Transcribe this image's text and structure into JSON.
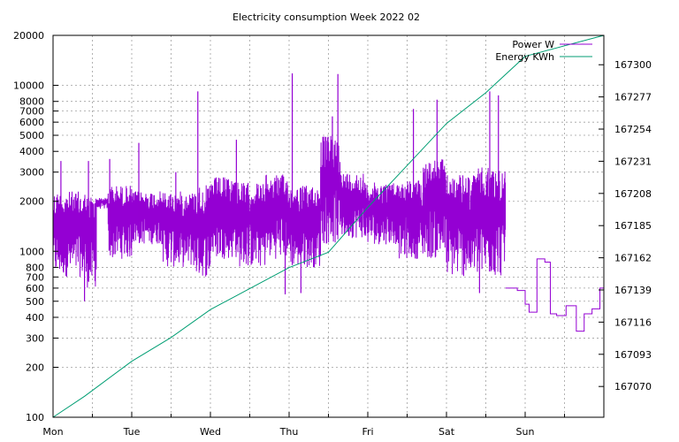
{
  "chart_data": {
    "type": "line",
    "title": "Electricity consumption Week 2022 02",
    "x_categories": [
      "Mon",
      "Tue",
      "Wed",
      "Thu",
      "Fri",
      "Sat",
      "Sun"
    ],
    "x_range_days": [
      0,
      7
    ],
    "y_left_scale": "log",
    "y_left_range": [
      100,
      20000
    ],
    "y_left_ticks": [
      100,
      200,
      300,
      400,
      500,
      600,
      700,
      800,
      1000,
      2000,
      3000,
      4000,
      5000,
      6000,
      7000,
      8000,
      10000,
      20000
    ],
    "y_right_range": [
      167048,
      167321
    ],
    "y_right_ticks": [
      167070,
      167093,
      167116,
      167139,
      167162,
      167185,
      167208,
      167231,
      167254,
      167277,
      167300
    ],
    "grid": true,
    "legend_position": "top-right",
    "series": [
      {
        "name": "Power W",
        "axis": "left",
        "color": "#9400d3",
        "segments": [
          {
            "x_days": [
              0.0,
              0.42
            ],
            "low": 700,
            "high": 2300
          },
          {
            "x_days": [
              0.42,
              0.55
            ],
            "low": 600,
            "high": 2200
          },
          {
            "x_days": [
              0.55,
              0.7
            ],
            "low": 1800,
            "high": 2100
          },
          {
            "x_days": [
              0.7,
              1.0
            ],
            "low": 900,
            "high": 2500
          },
          {
            "x_days": [
              1.0,
              1.4
            ],
            "low": 1100,
            "high": 2300
          },
          {
            "x_days": [
              1.4,
              1.8
            ],
            "low": 800,
            "high": 2300
          },
          {
            "x_days": [
              1.8,
              2.0
            ],
            "low": 700,
            "high": 2500
          },
          {
            "x_days": [
              2.0,
              2.35
            ],
            "low": 900,
            "high": 2800
          },
          {
            "x_days": [
              2.35,
              2.7
            ],
            "low": 800,
            "high": 2600
          },
          {
            "x_days": [
              2.7,
              3.0
            ],
            "low": 900,
            "high": 2900
          },
          {
            "x_days": [
              3.0,
              3.4
            ],
            "low": 800,
            "high": 2500
          },
          {
            "x_days": [
              3.4,
              3.65
            ],
            "low": 1100,
            "high": 5000
          },
          {
            "x_days": [
              3.65,
              3.95
            ],
            "low": 1200,
            "high": 3000
          },
          {
            "x_days": [
              3.95,
              4.4
            ],
            "low": 1100,
            "high": 2600
          },
          {
            "x_days": [
              4.4,
              4.7
            ],
            "low": 900,
            "high": 2700
          },
          {
            "x_days": [
              4.7,
              5.0
            ],
            "low": 900,
            "high": 3600
          },
          {
            "x_days": [
              5.0,
              5.4
            ],
            "low": 700,
            "high": 2900
          },
          {
            "x_days": [
              5.4,
              5.75
            ],
            "low": 700,
            "high": 3200
          }
        ],
        "spikes": [
          {
            "x_day": 0.1,
            "value": 3500
          },
          {
            "x_day": 0.45,
            "value": 3500
          },
          {
            "x_day": 0.72,
            "value": 3600
          },
          {
            "x_day": 1.09,
            "value": 4500
          },
          {
            "x_day": 1.56,
            "value": 3000
          },
          {
            "x_day": 1.84,
            "value": 9200
          },
          {
            "x_day": 2.33,
            "value": 4700
          },
          {
            "x_day": 3.04,
            "value": 11800
          },
          {
            "x_day": 3.62,
            "value": 11700
          },
          {
            "x_day": 3.55,
            "value": 6500
          },
          {
            "x_day": 4.58,
            "value": 7200
          },
          {
            "x_day": 4.88,
            "value": 8200
          },
          {
            "x_day": 5.55,
            "value": 9200
          },
          {
            "x_day": 5.66,
            "value": 8700
          },
          {
            "x_day": 0.4,
            "value": 500
          },
          {
            "x_day": 2.95,
            "value": 550
          },
          {
            "x_day": 3.15,
            "value": 560
          },
          {
            "x_day": 5.42,
            "value": 560
          }
        ],
        "step_tail": [
          [
            5.75,
            600
          ],
          [
            5.9,
            580
          ],
          [
            6.0,
            480
          ],
          [
            6.05,
            430
          ],
          [
            6.15,
            900
          ],
          [
            6.25,
            860
          ],
          [
            6.32,
            420
          ],
          [
            6.4,
            410
          ],
          [
            6.52,
            470
          ],
          [
            6.65,
            330
          ],
          [
            6.75,
            420
          ],
          [
            6.85,
            450
          ],
          [
            6.95,
            600
          ],
          [
            7.0,
            600
          ]
        ]
      },
      {
        "name": "Energy KWh",
        "axis": "right",
        "color": "#009e73",
        "points": [
          [
            0.0,
            167048
          ],
          [
            0.4,
            167063
          ],
          [
            1.0,
            167088
          ],
          [
            1.5,
            167105
          ],
          [
            2.0,
            167125
          ],
          [
            2.5,
            167140
          ],
          [
            3.0,
            167155
          ],
          [
            3.5,
            167166
          ],
          [
            4.0,
            167198
          ],
          [
            4.5,
            167228
          ],
          [
            5.0,
            167258
          ],
          [
            5.5,
            167280
          ],
          [
            6.0,
            167306
          ],
          [
            7.0,
            167321
          ]
        ]
      }
    ]
  }
}
